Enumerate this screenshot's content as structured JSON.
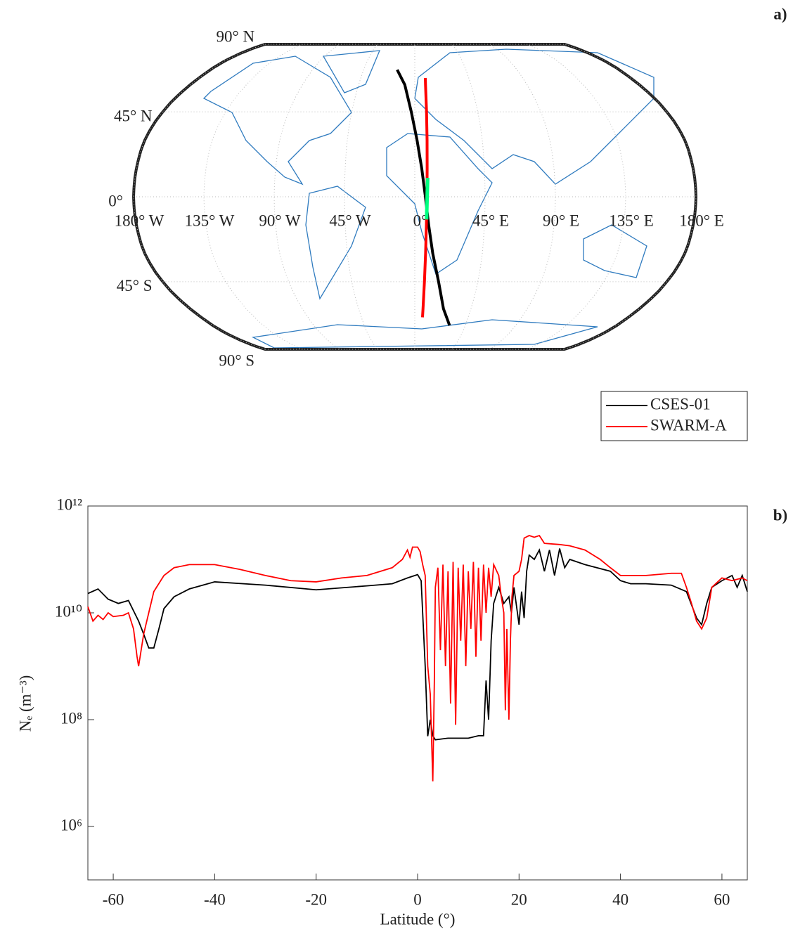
{
  "chart_data": [
    {
      "type": "map",
      "panel_label": "a)",
      "projection": "robinson",
      "grid": true,
      "xlim": [
        -180,
        180
      ],
      "ylim": [
        -90,
        90
      ],
      "xticks": [
        {
          "value": -180,
          "label": "180° W"
        },
        {
          "value": -135,
          "label": "135° W"
        },
        {
          "value": -90,
          "label": "90° W"
        },
        {
          "value": -45,
          "label": "45° W"
        },
        {
          "value": 0,
          "label": "0°"
        },
        {
          "value": 45,
          "label": "45° E"
        },
        {
          "value": 90,
          "label": "90° E"
        },
        {
          "value": 135,
          "label": "135° E"
        },
        {
          "value": 180,
          "label": "180° E"
        }
      ],
      "yticks": [
        {
          "value": 90,
          "label": "90° N"
        },
        {
          "value": 45,
          "label": "45° N"
        },
        {
          "value": 0,
          "label": "0°"
        },
        {
          "value": -45,
          "label": "45° S"
        },
        {
          "value": -90,
          "label": "90° S"
        }
      ],
      "legend": "southeast",
      "series": [
        {
          "name": "CSES-01",
          "color": "#000000",
          "x": [
            -15.5,
            -8,
            -2.5,
            1.5,
            4.5,
            6.8,
            9,
            12,
            17,
            23,
            31
          ],
          "values": [
            69,
            60,
            45,
            30,
            15,
            0,
            -15,
            -30,
            -45,
            -60,
            -70
          ]
        },
        {
          "name": "SWARM-A",
          "color": "#ff0000",
          "x": [
            8.8,
            8.6,
            8.4,
            8.2,
            8,
            7.8,
            7.5,
            7.2,
            6.9,
            6.6,
            6.5
          ],
          "values": [
            64,
            60,
            45,
            30,
            15,
            0,
            -15,
            -30,
            -45,
            -60,
            -65
          ]
        }
      ],
      "highlights": [
        {
          "color": "#00ff80",
          "x": [
            8.3,
            7.6
          ],
          "values": [
            10,
            -12
          ]
        }
      ]
    },
    {
      "type": "line",
      "panel_label": "b)",
      "xlabel": "Latitude (°)",
      "ylabel": "Nₑ (m⁻³)",
      "yscale": "log",
      "xlim": [
        -65,
        65
      ],
      "ylim": [
        100000,
        1000000000000
      ],
      "xticks": [
        -60,
        -40,
        -20,
        0,
        20,
        40,
        60
      ],
      "yticks": [
        {
          "value": 1000000,
          "label": "10⁶"
        },
        {
          "value": 100000000,
          "label": "10⁸"
        },
        {
          "value": 10000000000,
          "label": "10¹⁰"
        },
        {
          "value": 1000000000000,
          "label": "10¹²"
        }
      ],
      "series": [
        {
          "name": "CSES-01",
          "color": "#000000",
          "x": [
            -65,
            -63,
            -61,
            -59,
            -57,
            -55,
            -54,
            -53,
            -52,
            -51,
            -50,
            -48,
            -45,
            -40,
            -30,
            -20,
            -10,
            -5,
            -2,
            0,
            0.7,
            1,
            1.5,
            2,
            2.5,
            3,
            3.5,
            6,
            10,
            12,
            13,
            13.5,
            14,
            14.5,
            15,
            16,
            17,
            18,
            18.5,
            19,
            20,
            20.5,
            21,
            21.5,
            22,
            23,
            24,
            25,
            26,
            27,
            28,
            29,
            30,
            33,
            38,
            40,
            42,
            45,
            50,
            53,
            55,
            56,
            57,
            58,
            60,
            62,
            63,
            64,
            65
          ],
          "values": [
            23000000000.0,
            28000000000.0,
            18000000000.0,
            15000000000.0,
            17000000000.0,
            7000000000.0,
            4000000000.0,
            2200000000.0,
            2200000000.0,
            5000000000.0,
            12000000000.0,
            20000000000.0,
            28000000000.0,
            38000000000.0,
            33000000000.0,
            27000000000.0,
            32000000000.0,
            35000000000.0,
            45000000000.0,
            52000000000.0,
            40000000000.0,
            10000000000.0,
            1000000000.0,
            49000000.0,
            100000000.0,
            50000000.0,
            42000000.0,
            45000000.0,
            45000000.0,
            50000000.0,
            50000000.0,
            540000000.0,
            100000000.0,
            3000000000.0,
            15000000000.0,
            30000000000.0,
            15000000000.0,
            20000000000.0,
            10000000000.0,
            30000000000.0,
            6000000000.0,
            25000000000.0,
            8000000000.0,
            60000000000.0,
            120000000000.0,
            100000000000.0,
            150000000000.0,
            60000000000.0,
            150000000000.0,
            50000000000.0,
            160000000000.0,
            70000000000.0,
            100000000000.0,
            80000000000.0,
            60000000000.0,
            40000000000.0,
            35000000000.0,
            35000000000.0,
            33000000000.0,
            25000000000.0,
            8000000000.0,
            6000000000.0,
            15000000000.0,
            30000000000.0,
            40000000000.0,
            50000000000.0,
            30000000000.0,
            50000000000.0,
            25000000000.0
          ]
        },
        {
          "name": "SWARM-A",
          "color": "#ff0000",
          "x": [
            -65,
            -64,
            -63,
            -62,
            -61,
            -60,
            -58,
            -57,
            -56,
            -55.3,
            -55,
            -54.5,
            -54,
            -53,
            -52,
            -50,
            -48,
            -45,
            -40,
            -35,
            -30,
            -25,
            -20,
            -15,
            -10,
            -5,
            -3,
            -2,
            -1.5,
            -1,
            0,
            0.5,
            1,
            1.5,
            2,
            2.5,
            3,
            3.3,
            3.5,
            4,
            4.5,
            5,
            5.5,
            6,
            6.5,
            7,
            7.5,
            8,
            8.5,
            9,
            9.5,
            10,
            10.5,
            11,
            11.5,
            12,
            12.5,
            13,
            13.5,
            14,
            14.5,
            15,
            16,
            16.5,
            17,
            17.3,
            17.6,
            18,
            18.3,
            18.6,
            19,
            20,
            20.5,
            21,
            22,
            23,
            24,
            25,
            28,
            30,
            33,
            36,
            38,
            40,
            45,
            50,
            52,
            53,
            54,
            55,
            56,
            57,
            58,
            60,
            62,
            64,
            65
          ],
          "values": [
            13000000000.0,
            7000000000.0,
            9000000000.0,
            7500000000.0,
            10000000000.0,
            8500000000.0,
            9000000000.0,
            10000000000.0,
            5000000000.0,
            1500000000.0,
            1000000000.0,
            2000000000.0,
            4000000000.0,
            10000000000.0,
            25000000000.0,
            50000000000.0,
            70000000000.0,
            80000000000.0,
            80000000000.0,
            65000000000.0,
            50000000000.0,
            40000000000.0,
            38000000000.0,
            45000000000.0,
            50000000000.0,
            70000000000.0,
            100000000000.0,
            150000000000.0,
            110000000000.0,
            170000000000.0,
            170000000000.0,
            140000000000.0,
            80000000000.0,
            50000000000.0,
            1000000000.0,
            300000000.0,
            7000000.0,
            500000000.0,
            30000000000.0,
            70000000000.0,
            2000000000.0,
            80000000000.0,
            1000000000.0,
            60000000000.0,
            200000000.0,
            90000000000.0,
            80000000.0,
            70000000000.0,
            3000000000.0,
            80000000000.0,
            1000000000.0,
            60000000000.0,
            5000000000.0,
            90000000000.0,
            1500000000.0,
            70000000000.0,
            3000000000.0,
            80000000000.0,
            10000000000.0,
            70000000000.0,
            20000000000.0,
            80000000000.0,
            50000000000.0,
            20000000000.0,
            10000000000.0,
            150000000.0,
            5000000000.0,
            100000000.0,
            3000000000.0,
            20000000000.0,
            50000000000.0,
            60000000000.0,
            100000000000.0,
            250000000000.0,
            280000000000.0,
            260000000000.0,
            280000000000.0,
            200000000000.0,
            190000000000.0,
            180000000000.0,
            150000000000.0,
            100000000000.0,
            70000000000.0,
            50000000000.0,
            50000000000.0,
            55000000000.0,
            55000000000.0,
            30000000000.0,
            15000000000.0,
            7000000000.0,
            5000000000.0,
            8000000000.0,
            30000000000.0,
            45000000000.0,
            40000000000.0,
            45000000000.0,
            40000000000.0
          ]
        }
      ]
    }
  ]
}
